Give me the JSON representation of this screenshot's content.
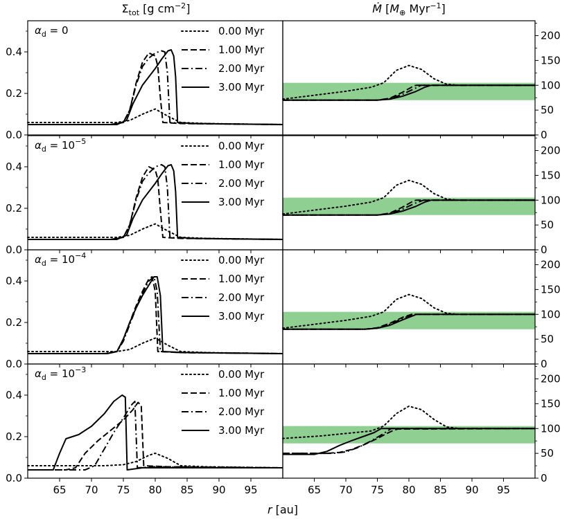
{
  "chart_data": {
    "type": "line",
    "column_titles": {
      "left": {
        "base": "Σ",
        "sub": "tot",
        "rest": " [g cm",
        "sup": "−2",
        "close": "]"
      },
      "right": {
        "base": "Ṁ",
        "open": " [",
        "unit": "M",
        "sub": "⊕",
        "rest": " Myr",
        "sup": "−1",
        "close": "]"
      }
    },
    "xlabel": {
      "var": "r",
      "unit": " [au]"
    },
    "xlim": [
      60,
      100
    ],
    "xticks": [
      65,
      70,
      75,
      80,
      85,
      90,
      95
    ],
    "left_ylim": [
      0,
      0.55
    ],
    "left_yticks": [
      "0.0",
      "0.2",
      "0.4"
    ],
    "left_ytick_values": [
      0,
      0.2,
      0.4
    ],
    "right_ylim": [
      0,
      230
    ],
    "right_yticks": [
      "0",
      "50",
      "100",
      "150",
      "200"
    ],
    "right_ytick_values": [
      0,
      50,
      100,
      150,
      200
    ],
    "band": {
      "y0": 70,
      "y1": 105,
      "color": "#90cf92"
    },
    "legend": [
      {
        "label": "0.00 Myr",
        "style": "dotted"
      },
      {
        "label": "1.00 Myr",
        "style": "dashed"
      },
      {
        "label": "2.00 Myr",
        "style": "dashdot"
      },
      {
        "label": "3.00 Myr",
        "style": "solid"
      }
    ],
    "rows": [
      {
        "alpha_label": {
          "base": "α",
          "sub": "d",
          "eq": " = ",
          "val": "0",
          "exp": ""
        },
        "sigma": [
          {
            "name": "0.00 Myr",
            "x": [
              60,
              70,
              74,
              76,
              78,
              80,
              82,
              84,
              88,
              100
            ],
            "y": [
              0.06,
              0.06,
              0.06,
              0.07,
              0.1,
              0.125,
              0.09,
              0.06,
              0.055,
              0.05
            ]
          },
          {
            "name": "1.00 Myr",
            "x": [
              60,
              73,
              75,
              76,
              77,
              78,
              79,
              80,
              80.4,
              80.8,
              81.2,
              84,
              100
            ],
            "y": [
              0.05,
              0.05,
              0.06,
              0.12,
              0.25,
              0.35,
              0.395,
              0.38,
              0.33,
              0.18,
              0.06,
              0.055,
              0.05
            ]
          },
          {
            "name": "2.00 Myr",
            "x": [
              60,
              73,
              75,
              76,
              77,
              78,
              79,
              80,
              81,
              81.5,
              81.9,
              82.3,
              85,
              100
            ],
            "y": [
              0.05,
              0.05,
              0.06,
              0.12,
              0.24,
              0.33,
              0.37,
              0.395,
              0.405,
              0.4,
              0.3,
              0.06,
              0.055,
              0.05
            ]
          },
          {
            "name": "3.00 Myr",
            "x": [
              60,
              74,
              75.5,
              76.5,
              78,
              80,
              81,
              82,
              82.5,
              82.9,
              83.2,
              83.5,
              86,
              100
            ],
            "y": [
              0.05,
              0.05,
              0.07,
              0.15,
              0.24,
              0.32,
              0.365,
              0.405,
              0.41,
              0.38,
              0.28,
              0.06,
              0.055,
              0.05
            ]
          }
        ],
        "mdot": [
          {
            "name": "0.00 Myr",
            "x": [
              60,
              70,
              74,
              76,
              78,
              80,
              82,
              84,
              86,
              88,
              100
            ],
            "y": [
              72,
              88,
              96,
              105,
              130,
              140,
              132,
              113,
              102,
              100,
              100
            ]
          },
          {
            "name": "1.00 Myr",
            "x": [
              60,
              75,
              77,
              79,
              80.8,
              81.2,
              100
            ],
            "y": [
              70,
              70,
              74,
              86,
              99,
              100,
              100
            ]
          },
          {
            "name": "2.00 Myr",
            "x": [
              60,
              75,
              77,
              79,
              81,
              81.9,
              82.3,
              100
            ],
            "y": [
              70,
              70,
              73,
              82,
              94,
              100,
              100,
              100
            ]
          },
          {
            "name": "3.00 Myr",
            "x": [
              60,
              75,
              77,
              79,
              81,
              82.5,
              83.5,
              100
            ],
            "y": [
              70,
              70,
              72,
              78,
              87,
              96,
              100,
              100
            ]
          }
        ]
      },
      {
        "alpha_label": {
          "base": "α",
          "sub": "d",
          "eq": " = ",
          "val": "10",
          "exp": "−5"
        },
        "sigma": [
          {
            "name": "0.00 Myr",
            "x": [
              60,
              70,
              74,
              76,
              78,
              80,
              82,
              84,
              88,
              100
            ],
            "y": [
              0.06,
              0.06,
              0.06,
              0.07,
              0.1,
              0.125,
              0.09,
              0.06,
              0.055,
              0.05
            ]
          },
          {
            "name": "1.00 Myr",
            "x": [
              60,
              73,
              75,
              76,
              77,
              78,
              79,
              80,
              80.4,
              80.8,
              81.2,
              84,
              100
            ],
            "y": [
              0.05,
              0.05,
              0.06,
              0.12,
              0.25,
              0.35,
              0.4,
              0.385,
              0.34,
              0.19,
              0.06,
              0.055,
              0.05
            ]
          },
          {
            "name": "2.00 Myr",
            "x": [
              60,
              73,
              75,
              76,
              77,
              78,
              79,
              80,
              81,
              81.5,
              81.9,
              82.3,
              85,
              100
            ],
            "y": [
              0.05,
              0.05,
              0.06,
              0.12,
              0.24,
              0.33,
              0.37,
              0.4,
              0.41,
              0.4,
              0.3,
              0.06,
              0.055,
              0.05
            ]
          },
          {
            "name": "3.00 Myr",
            "x": [
              60,
              74,
              75.5,
              76.5,
              78,
              80,
              81,
              82,
              82.5,
              82.9,
              83.2,
              83.5,
              86,
              100
            ],
            "y": [
              0.05,
              0.05,
              0.07,
              0.15,
              0.24,
              0.32,
              0.365,
              0.405,
              0.41,
              0.38,
              0.28,
              0.06,
              0.055,
              0.05
            ]
          }
        ],
        "mdot": [
          {
            "name": "0.00 Myr",
            "x": [
              60,
              70,
              74,
              76,
              78,
              80,
              82,
              84,
              86,
              88,
              100
            ],
            "y": [
              72,
              88,
              96,
              105,
              130,
              140,
              132,
              113,
              102,
              100,
              100
            ]
          },
          {
            "name": "1.00 Myr",
            "x": [
              60,
              75,
              77,
              79,
              80.8,
              81.2,
              100
            ],
            "y": [
              70,
              70,
              74,
              86,
              99,
              100,
              100
            ]
          },
          {
            "name": "2.00 Myr",
            "x": [
              60,
              75,
              77,
              79,
              81,
              82.3,
              100
            ],
            "y": [
              70,
              70,
              73,
              82,
              94,
              100,
              100
            ]
          },
          {
            "name": "3.00 Myr",
            "x": [
              60,
              75,
              77,
              79,
              81,
              82.5,
              83.5,
              100
            ],
            "y": [
              70,
              70,
              72,
              78,
              87,
              96,
              100,
              100
            ]
          }
        ]
      },
      {
        "alpha_label": {
          "base": "α",
          "sub": "d",
          "eq": " = ",
          "val": "10",
          "exp": "−4"
        },
        "sigma": [
          {
            "name": "0.00 Myr",
            "x": [
              60,
              70,
              74,
              76,
              78,
              80,
              82,
              84,
              88,
              100
            ],
            "y": [
              0.06,
              0.06,
              0.06,
              0.07,
              0.1,
              0.125,
              0.09,
              0.06,
              0.055,
              0.05
            ]
          },
          {
            "name": "1.00 Myr",
            "x": [
              60,
              72,
              74,
              75,
              76,
              77,
              78,
              79,
              79.5,
              80,
              80.4,
              84,
              100
            ],
            "y": [
              0.05,
              0.05,
              0.06,
              0.12,
              0.2,
              0.28,
              0.35,
              0.41,
              0.42,
              0.35,
              0.06,
              0.055,
              0.05
            ]
          },
          {
            "name": "2.00 Myr",
            "x": [
              60,
              72,
              74,
              75,
              76,
              77,
              78,
              79,
              79.8,
              80.3,
              80.8,
              84,
              100
            ],
            "y": [
              0.05,
              0.05,
              0.06,
              0.11,
              0.19,
              0.27,
              0.34,
              0.4,
              0.42,
              0.35,
              0.06,
              0.055,
              0.05
            ]
          },
          {
            "name": "3.00 Myr",
            "x": [
              60,
              72.5,
              74,
              75,
              76,
              77,
              78,
              79,
              79.8,
              80.3,
              80.8,
              81.2,
              85,
              100
            ],
            "y": [
              0.05,
              0.05,
              0.06,
              0.12,
              0.2,
              0.27,
              0.33,
              0.38,
              0.42,
              0.42,
              0.33,
              0.06,
              0.055,
              0.05
            ]
          }
        ],
        "mdot": [
          {
            "name": "0.00 Myr",
            "x": [
              60,
              70,
              74,
              76,
              78,
              80,
              82,
              84,
              86,
              88,
              100
            ],
            "y": [
              72,
              88,
              96,
              105,
              130,
              140,
              132,
              113,
              102,
              100,
              100
            ]
          },
          {
            "name": "1.00 Myr",
            "x": [
              60,
              73,
              75,
              77,
              79,
              80.4,
              100
            ],
            "y": [
              70,
              70,
              73,
              82,
              94,
              100,
              100
            ]
          },
          {
            "name": "2.00 Myr",
            "x": [
              60,
              73,
              75,
              77,
              79,
              80.8,
              100
            ],
            "y": [
              70,
              70,
              72,
              80,
              92,
              100,
              100
            ]
          },
          {
            "name": "3.00 Myr",
            "x": [
              60,
              73,
              75,
              77,
              79,
              81.2,
              100
            ],
            "y": [
              70,
              70,
              72,
              78,
              89,
              100,
              100
            ]
          }
        ]
      },
      {
        "alpha_label": {
          "base": "α",
          "sub": "d",
          "eq": " = ",
          "val": "10",
          "exp": "−3"
        },
        "sigma": [
          {
            "name": "0.00 Myr",
            "x": [
              60,
              72,
              75,
              77,
              79,
              80,
              82,
              84,
              88,
              100
            ],
            "y": [
              0.06,
              0.06,
              0.065,
              0.08,
              0.11,
              0.12,
              0.095,
              0.06,
              0.055,
              0.05
            ]
          },
          {
            "name": "1.00 Myr",
            "x": [
              60,
              66,
              67.5,
              69,
              71,
              73,
              75,
              76.5,
              77.3,
              77.8,
              78.2,
              82,
              100
            ],
            "y": [
              0.04,
              0.04,
              0.05,
              0.12,
              0.18,
              0.23,
              0.28,
              0.33,
              0.365,
              0.35,
              0.06,
              0.055,
              0.05
            ]
          },
          {
            "name": "2.00 Myr",
            "x": [
              60,
              69,
              70.5,
              72,
              73.5,
              75,
              76.2,
              76.8,
              77.2,
              80,
              100
            ],
            "y": [
              0.04,
              0.04,
              0.06,
              0.14,
              0.22,
              0.29,
              0.35,
              0.37,
              0.05,
              0.055,
              0.05
            ]
          },
          {
            "name": "3.00 Myr",
            "x": [
              60,
              64,
              65,
              66,
              68,
              70,
              72,
              73.5,
              74.8,
              75.3,
              75.6,
              78,
              100
            ],
            "y": [
              0.04,
              0.04,
              0.12,
              0.19,
              0.21,
              0.25,
              0.31,
              0.37,
              0.4,
              0.39,
              0.04,
              0.05,
              0.05
            ]
          }
        ],
        "mdot": [
          {
            "name": "0.00 Myr",
            "x": [
              60,
              66,
              70,
              74,
              76,
              78,
              80,
              82,
              84,
              86,
              88,
              100
            ],
            "y": [
              80,
              85,
              90,
              95,
              105,
              130,
              145,
              138,
              118,
              103,
              100,
              100
            ]
          },
          {
            "name": "1.00 Myr",
            "x": [
              60,
              67,
              69,
              71,
              73,
              75,
              76.5,
              77.5,
              78.2,
              100
            ],
            "y": [
              50,
              50,
              52,
              58,
              68,
              80,
              90,
              96,
              99,
              100
            ]
          },
          {
            "name": "2.00 Myr",
            "x": [
              60,
              68,
              70,
              72,
              74,
              76,
              77.2,
              78,
              100
            ],
            "y": [
              50,
              50,
              53,
              62,
              75,
              90,
              100,
              100,
              100
            ]
          },
          {
            "name": "3.00 Myr",
            "x": [
              60,
              65,
              67,
              69,
              71,
              73,
              74.5,
              75.6,
              100
            ],
            "y": [
              48,
              48,
              54,
              66,
              76,
              85,
              92,
              100,
              100
            ]
          }
        ]
      }
    ]
  }
}
